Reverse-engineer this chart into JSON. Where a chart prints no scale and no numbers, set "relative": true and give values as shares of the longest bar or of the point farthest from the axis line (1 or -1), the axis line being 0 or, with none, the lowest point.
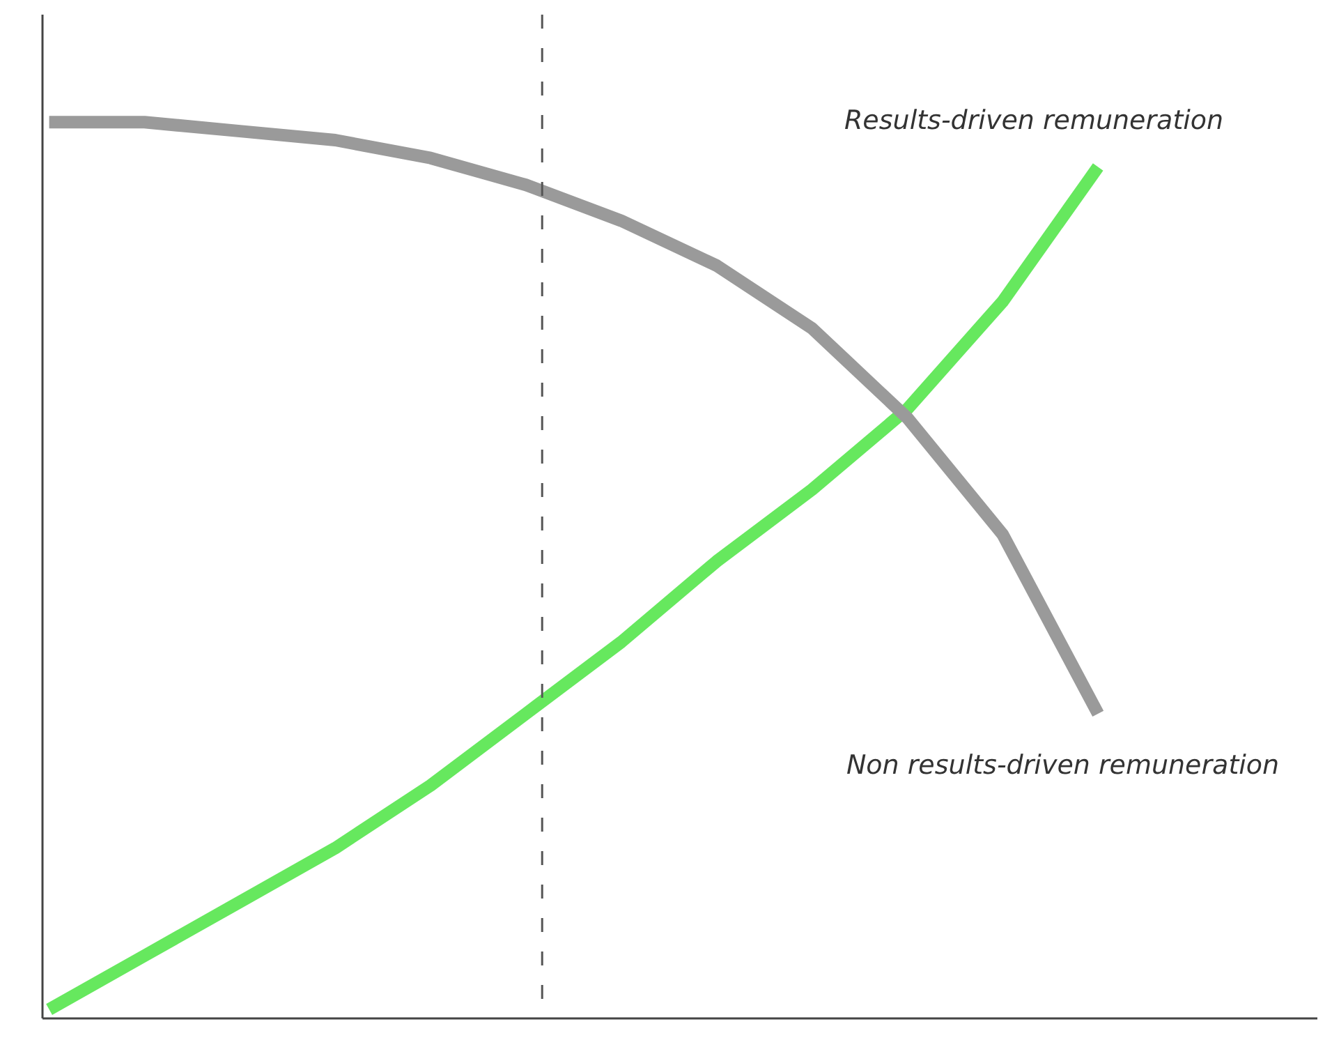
{
  "chart_data": {
    "type": "line",
    "relative": true,
    "categories": [
      null,
      null,
      null,
      null,
      null,
      null,
      null,
      null,
      null,
      null,
      null,
      null
    ],
    "series": [
      {
        "name": "Results-driven remuneration",
        "color": "#66e85e",
        "values": [
          0.01,
          0.07,
          0.13,
          0.19,
          0.26,
          0.34,
          0.42,
          0.51,
          0.59,
          0.68,
          0.8,
          0.95
        ]
      },
      {
        "name": "Non results-driven remuneration",
        "color": "#9a9a9a",
        "values": [
          1.0,
          1.0,
          0.99,
          0.98,
          0.96,
          0.93,
          0.89,
          0.84,
          0.77,
          0.67,
          0.54,
          0.34
        ]
      }
    ],
    "line_style": "solid",
    "marker": "none"
  }
}
